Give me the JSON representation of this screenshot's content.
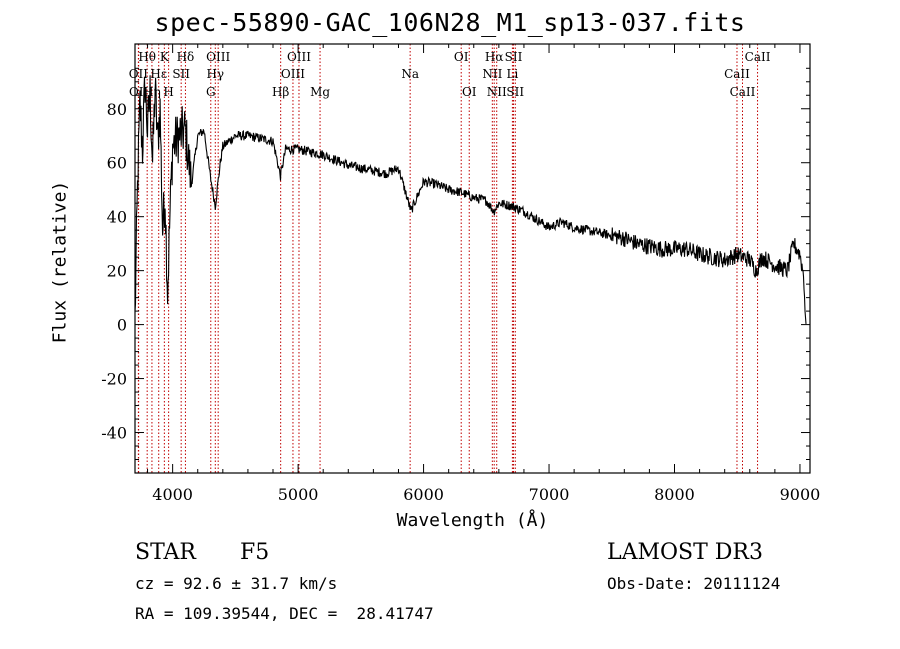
{
  "chart_data": {
    "type": "line",
    "title": "spec-55890-GAC_106N28_M1_sp13-037.fits",
    "xlabel": "Wavelength (Å)",
    "ylabel": "Flux (relative)",
    "xlim": [
      3700,
      9080
    ],
    "ylim": [
      -55,
      104
    ],
    "xticks": [
      4000,
      5000,
      6000,
      7000,
      8000,
      9000
    ],
    "yticks": [
      -40,
      -20,
      0,
      20,
      40,
      60,
      80
    ],
    "series": [
      {
        "name": "flux",
        "x": [
          3700,
          3720,
          3740,
          3760,
          3780,
          3800,
          3820,
          3840,
          3860,
          3880,
          3900,
          3920,
          3940,
          3960,
          3980,
          4000,
          4050,
          4100,
          4150,
          4200,
          4250,
          4300,
          4340,
          4380,
          4400,
          4450,
          4500,
          4600,
          4700,
          4800,
          4860,
          4900,
          5000,
          5100,
          5200,
          5300,
          5400,
          5500,
          5600,
          5700,
          5800,
          5900,
          6000,
          6100,
          6200,
          6300,
          6400,
          6500,
          6560,
          6600,
          6700,
          6800,
          6900,
          7000,
          7100,
          7200,
          7300,
          7400,
          7500,
          7600,
          7700,
          7800,
          7900,
          8000,
          8100,
          8200,
          8300,
          8400,
          8500,
          8600,
          8650,
          8700,
          8800,
          8900,
          8950,
          9000,
          9030,
          9050
        ],
        "y": [
          2,
          50,
          82,
          65,
          90,
          72,
          86,
          60,
          88,
          68,
          80,
          35,
          48,
          12,
          42,
          66,
          70,
          72,
          52,
          70,
          72,
          55,
          44,
          60,
          66,
          68,
          70,
          70,
          69,
          68,
          55,
          65,
          65,
          64,
          63,
          61,
          59,
          58,
          57,
          56,
          58,
          42,
          53,
          52,
          50,
          49,
          47,
          46,
          42,
          45,
          44,
          42,
          39,
          36,
          38,
          36,
          35,
          34,
          33,
          32,
          30,
          29,
          28,
          28,
          28,
          26,
          25,
          24,
          26,
          24,
          20,
          25,
          22,
          20,
          30,
          26,
          18,
          -5
        ]
      }
    ],
    "lines": [
      {
        "name": "Hθ",
        "x": 3797,
        "row": 0
      },
      {
        "name": "K",
        "x": 3934,
        "row": 0
      },
      {
        "name": "Hδ",
        "x": 4102,
        "row": 0
      },
      {
        "name": "OIII",
        "x": 4363,
        "row": 0
      },
      {
        "name": "OIII",
        "x": 5007,
        "row": 0
      },
      {
        "name": "OI",
        "x": 6300,
        "row": 0
      },
      {
        "name": "Hα",
        "x": 6563,
        "row": 0
      },
      {
        "name": "SII",
        "x": 6717,
        "row": 0
      },
      {
        "name": "CaII",
        "x": 8662,
        "row": 0
      },
      {
        "name": "OII",
        "x": 3727,
        "row": 1
      },
      {
        "name": "Hε",
        "x": 3889,
        "row": 1
      },
      {
        "name": "SII",
        "x": 4068,
        "row": 1
      },
      {
        "name": "Hγ",
        "x": 4340,
        "row": 1
      },
      {
        "name": "OIII",
        "x": 4959,
        "row": 1
      },
      {
        "name": "Na",
        "x": 5893,
        "row": 1
      },
      {
        "name": "NII",
        "x": 6548,
        "row": 1
      },
      {
        "name": "Li",
        "x": 6708,
        "row": 1
      },
      {
        "name": "CaII",
        "x": 8498,
        "row": 1
      },
      {
        "name": "OII",
        "x": 3729,
        "row": 2
      },
      {
        "name": "Hη",
        "x": 3835,
        "row": 2
      },
      {
        "name": "H",
        "x": 3968,
        "row": 2
      },
      {
        "name": "G",
        "x": 4304,
        "row": 2
      },
      {
        "name": "Hβ",
        "x": 4861,
        "row": 2
      },
      {
        "name": "Mg",
        "x": 5175,
        "row": 2
      },
      {
        "name": "OI",
        "x": 6364,
        "row": 2
      },
      {
        "name": "NII",
        "x": 6583,
        "row": 2
      },
      {
        "name": "SII",
        "x": 6731,
        "row": 2
      },
      {
        "name": "CaII",
        "x": 8542,
        "row": 2
      }
    ]
  },
  "info": {
    "obj_class": "STAR",
    "subclass": "F5",
    "survey": "LAMOST DR3",
    "cz": "cz = 92.6 ± 31.7 km/s",
    "obs_date": "Obs-Date: 20111124",
    "radec": "RA = 109.39544, DEC =  28.41747"
  }
}
